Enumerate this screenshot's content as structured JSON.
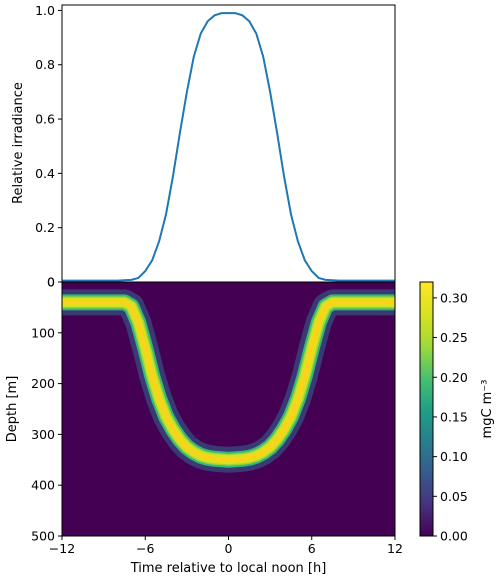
{
  "chart_data": [
    {
      "type": "line",
      "xlabel": "",
      "ylabel": "Relative irradiance",
      "xlim": [
        -12,
        12
      ],
      "ylim": [
        0,
        1.02
      ],
      "yticks": [
        "0",
        "0.2",
        "0.4",
        "0.6",
        "0.8",
        "1.0"
      ],
      "line_color": "#1f77b4",
      "series": [
        {
          "x": [
            -12,
            -8,
            -7,
            -6.5,
            -6,
            -5.5,
            -5,
            -4.5,
            -4,
            -3.5,
            -3,
            -2.5,
            -2,
            -1.5,
            -1,
            -0.5,
            0,
            0.5,
            1,
            1.5,
            2,
            2.5,
            3,
            3.5,
            4,
            4.5,
            5,
            5.5,
            6,
            6.5,
            7,
            8,
            12
          ],
          "y": [
            0.005,
            0.005,
            0.008,
            0.015,
            0.04,
            0.08,
            0.15,
            0.25,
            0.39,
            0.55,
            0.7,
            0.83,
            0.915,
            0.96,
            0.982,
            0.99,
            0.99,
            0.99,
            0.982,
            0.96,
            0.915,
            0.83,
            0.7,
            0.55,
            0.39,
            0.25,
            0.15,
            0.08,
            0.04,
            0.015,
            0.008,
            0.005,
            0.005
          ]
        }
      ]
    },
    {
      "type": "heatmap",
      "xlabel": "Time relative to local noon [h]",
      "ylabel": "Depth [m]",
      "xlim": [
        -12,
        12
      ],
      "ylim": [
        500,
        0
      ],
      "xticks": [
        "−12",
        "−6",
        "0",
        "6",
        "12"
      ],
      "yticks": [
        "0",
        "100",
        "200",
        "300",
        "400",
        "500"
      ],
      "background_color": "#440154",
      "band_center_depth": {
        "x": [
          -12,
          -7.5,
          -7,
          -6.5,
          -6,
          -5.5,
          -5,
          -4.5,
          -4,
          -3.5,
          -3,
          -2.5,
          -2,
          -1.5,
          -1,
          0,
          1,
          1.5,
          2,
          2.5,
          3,
          3.5,
          4,
          4.5,
          5,
          5.5,
          6,
          6.5,
          7,
          7.5,
          12
        ],
        "y": [
          40,
          40,
          48,
          80,
          130,
          185,
          230,
          265,
          290,
          310,
          325,
          335,
          342,
          346,
          348,
          350,
          348,
          346,
          342,
          335,
          325,
          310,
          290,
          265,
          230,
          185,
          130,
          80,
          48,
          40,
          40
        ]
      },
      "band_peak_value": 0.32,
      "band_half_width_m": 10,
      "colorbar": {
        "label": "mgC m⁻³",
        "range": [
          0,
          0.32
        ],
        "ticks": [
          "0.00",
          "0.05",
          "0.10",
          "0.15",
          "0.20",
          "0.25",
          "0.30"
        ]
      }
    }
  ]
}
